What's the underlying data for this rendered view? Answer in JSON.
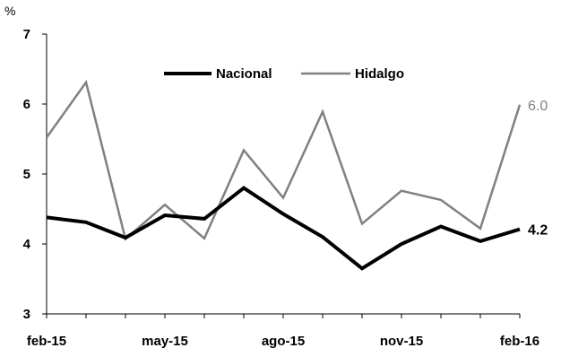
{
  "chart_data": {
    "type": "line",
    "unit": "%",
    "x": [
      "feb-15",
      "mar-15",
      "abr-15",
      "may-15",
      "jun-15",
      "jul-15",
      "ago-15",
      "sep-15",
      "oct-15",
      "nov-15",
      "dic-15",
      "ene-16",
      "feb-16"
    ],
    "x_tick_labels": [
      "feb-15",
      "may-15",
      "ago-15",
      "nov-15",
      "feb-16"
    ],
    "y_tick_labels": [
      "3",
      "4",
      "5",
      "6",
      "7"
    ],
    "ylim": [
      3,
      7
    ],
    "grid": false,
    "legend_position": "top-center",
    "series": [
      {
        "name": "Nacional",
        "color": "#000000",
        "values": [
          4.38,
          4.31,
          4.09,
          4.41,
          4.36,
          4.8,
          4.43,
          4.1,
          3.65,
          4.0,
          4.25,
          4.04,
          4.21
        ],
        "end_label": "4.2"
      },
      {
        "name": "Hidalgo",
        "color": "#808080",
        "values": [
          5.52,
          6.31,
          4.07,
          4.56,
          4.08,
          5.34,
          4.66,
          5.89,
          4.29,
          4.76,
          4.63,
          4.22,
          5.99
        ],
        "end_label": "6.0"
      }
    ]
  }
}
